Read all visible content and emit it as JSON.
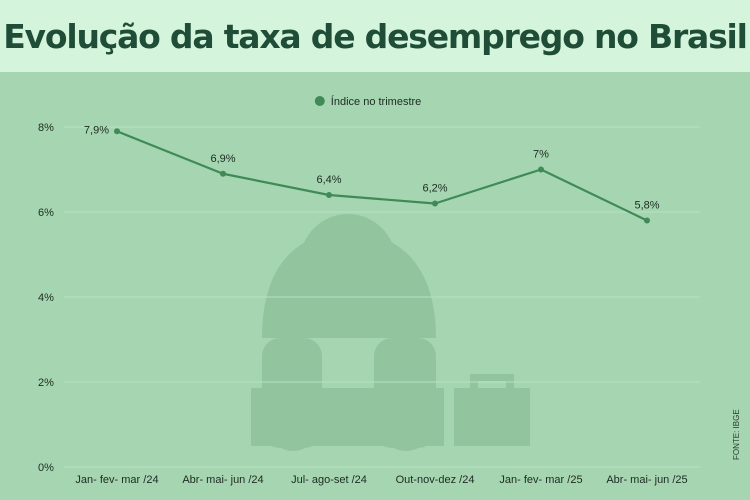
{
  "title": "Evolução da taxa de desemprego no Brasil",
  "source": "FONTE: IBGE",
  "colors": {
    "background": "#a5d6b1",
    "header_background": "#d4f5dc",
    "title": "#1f4d37",
    "line": "#3f8a55",
    "illustration": "#92c49e"
  },
  "illustration": "sad-businessman-with-briefcase-icon",
  "chart_data": {
    "type": "line",
    "categories": [
      "Jan- fev- mar /24",
      "Abr- mai- jun /24",
      "Jul- ago-set /24",
      "Out-nov-dez /24",
      "Jan- fev- mar /25",
      "Abr- mai- jun /25"
    ],
    "series": [
      {
        "name": "Índice no trimestre",
        "values": [
          7.9,
          6.9,
          6.4,
          6.2,
          7.0,
          5.8
        ],
        "labels": [
          "7,9%",
          "6,9%",
          "6,4%",
          "6,2%",
          "7%",
          "5,8%"
        ]
      }
    ],
    "yticks": [
      "0%",
      "2%",
      "4%",
      "6%",
      "8%"
    ],
    "ytick_values": [
      0,
      2,
      4,
      6,
      8
    ],
    "ylim": [
      0,
      8
    ],
    "legend_position": "top-center",
    "grid": true
  }
}
